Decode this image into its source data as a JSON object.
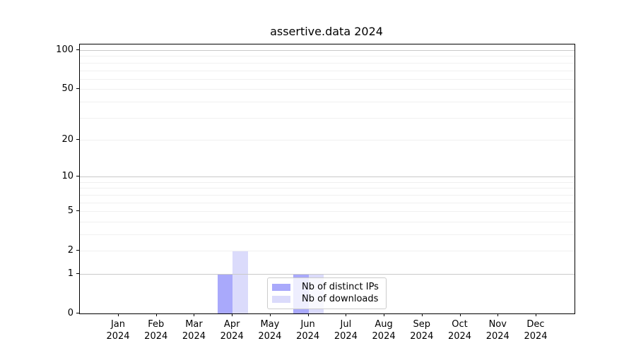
{
  "title": "assertive.data 2024",
  "chart_data": {
    "type": "bar",
    "title": "assertive.data 2024",
    "categories": [
      "Jan",
      "Feb",
      "Mar",
      "Apr",
      "May",
      "Jun",
      "Jul",
      "Aug",
      "Sep",
      "Oct",
      "Nov",
      "Dec"
    ],
    "x_tick_second_line": "2024",
    "series": [
      {
        "name": "Nb of distinct IPs",
        "color": "#a9a9fb",
        "values": [
          0,
          0,
          0,
          1,
          0,
          1,
          0,
          0,
          0,
          0,
          0,
          0
        ]
      },
      {
        "name": "Nb of downloads",
        "color": "#dbdbfb",
        "values": [
          0,
          0,
          0,
          2,
          0,
          1,
          0,
          0,
          0,
          0,
          0,
          0
        ]
      }
    ],
    "xlabel": "",
    "ylabel": "",
    "yscale": "log1p",
    "ylim": [
      0,
      110.6
    ],
    "y_tick_labels": [
      "0",
      "1",
      "2",
      "5",
      "10",
      "20",
      "50",
      "100"
    ],
    "y_tick_values": [
      0,
      1,
      2,
      5,
      10,
      20,
      50,
      100
    ],
    "y_major_gridlines": [
      1,
      10,
      100
    ],
    "y_minor_gridlines": [
      2,
      3,
      4,
      5,
      6,
      7,
      8,
      9,
      20,
      30,
      40,
      50,
      60,
      70,
      80,
      90
    ],
    "grid": "both horizontal",
    "legend_position": "lower center inside plot"
  },
  "colors": {
    "background": "#ffffff",
    "axis": "#000000",
    "major_grid": "#c9c9c9",
    "minor_grid": "#f0f0f0",
    "bar_distinct_ips": "#a9a9fb",
    "bar_downloads": "#dbdbfb",
    "legend_border": "#cccccc"
  }
}
